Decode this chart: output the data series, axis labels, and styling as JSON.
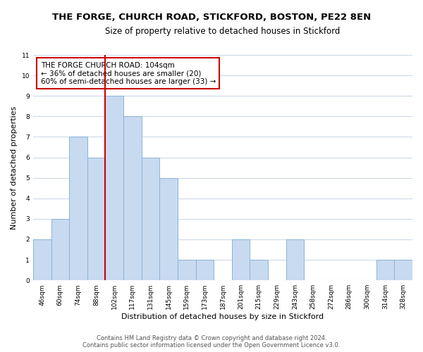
{
  "title": "THE FORGE, CHURCH ROAD, STICKFORD, BOSTON, PE22 8EN",
  "subtitle": "Size of property relative to detached houses in Stickford",
  "xlabel": "Distribution of detached houses by size in Stickford",
  "ylabel": "Number of detached properties",
  "bar_labels": [
    "46sqm",
    "60sqm",
    "74sqm",
    "88sqm",
    "102sqm",
    "117sqm",
    "131sqm",
    "145sqm",
    "159sqm",
    "173sqm",
    "187sqm",
    "201sqm",
    "215sqm",
    "229sqm",
    "243sqm",
    "258sqm",
    "272sqm",
    "286sqm",
    "300sqm",
    "314sqm",
    "328sqm"
  ],
  "bar_values": [
    2,
    3,
    7,
    6,
    9,
    8,
    6,
    5,
    1,
    1,
    0,
    2,
    1,
    0,
    2,
    0,
    0,
    0,
    0,
    1,
    1
  ],
  "bar_color": "#c8daf0",
  "bar_edge_color": "#8ab4d8",
  "highlight_line_color": "#cc0000",
  "highlight_bar_index": 4,
  "annotation_text": "THE FORGE CHURCH ROAD: 104sqm\n← 36% of detached houses are smaller (20)\n60% of semi-detached houses are larger (33) →",
  "annotation_box_color": "#ffffff",
  "annotation_box_edge_color": "#cc0000",
  "ylim": [
    0,
    11
  ],
  "yticks": [
    0,
    1,
    2,
    3,
    4,
    5,
    6,
    7,
    8,
    9,
    10,
    11
  ],
  "footer_line1": "Contains HM Land Registry data © Crown copyright and database right 2024.",
  "footer_line2": "Contains public sector information licensed under the Open Government Licence v3.0.",
  "background_color": "#ffffff",
  "grid_color": "#ccd9e8",
  "title_fontsize": 9.5,
  "subtitle_fontsize": 8.5,
  "axis_label_fontsize": 8,
  "tick_fontsize": 6.5,
  "annotation_fontsize": 7.5,
  "footer_fontsize": 6
}
